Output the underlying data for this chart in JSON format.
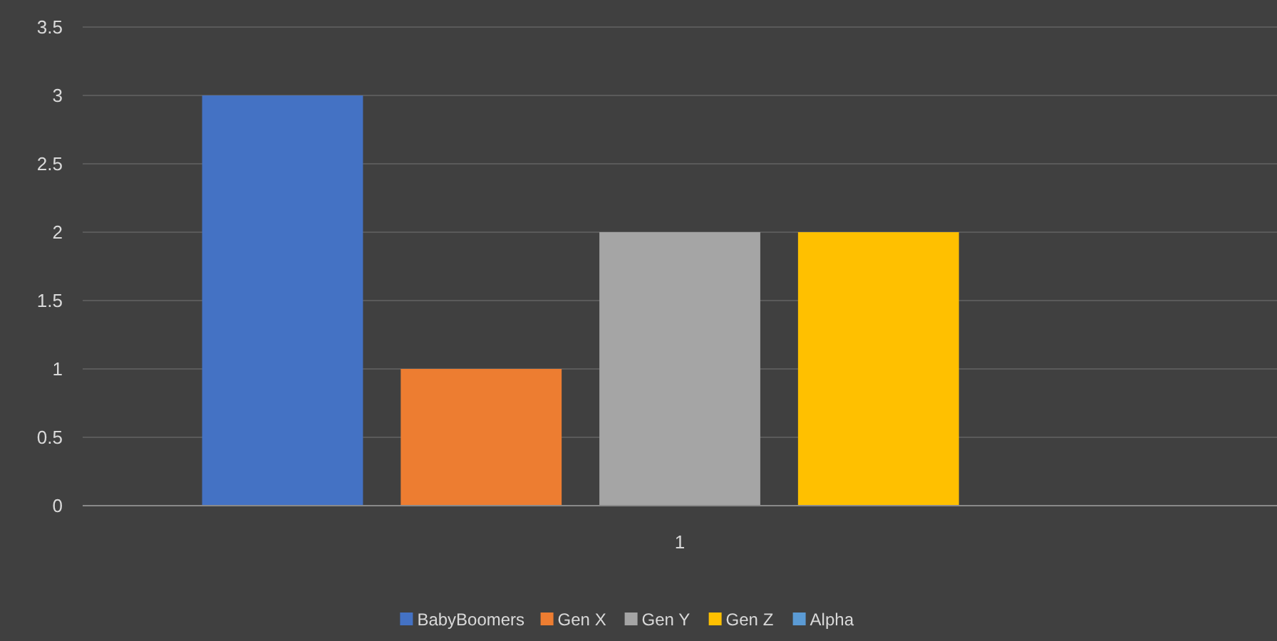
{
  "chart_data": {
    "type": "bar",
    "categories": [
      "1"
    ],
    "series": [
      {
        "name": "BabyBoomers",
        "color": "#4472c4",
        "values": [
          3
        ]
      },
      {
        "name": "Gen X",
        "color": "#ed7d31",
        "values": [
          1
        ]
      },
      {
        "name": "Gen Y",
        "color": "#a5a5a5",
        "values": [
          2
        ]
      },
      {
        "name": "Gen Z",
        "color": "#ffc000",
        "values": [
          2
        ]
      },
      {
        "name": "Alpha",
        "color": "#5b9bd5",
        "values": [
          null
        ]
      }
    ],
    "ylim": [
      0,
      3.5
    ],
    "yticks": [
      0,
      0.5,
      1,
      1.5,
      2,
      2.5,
      3,
      3.5
    ],
    "grid": "y",
    "legend": "bottom"
  }
}
